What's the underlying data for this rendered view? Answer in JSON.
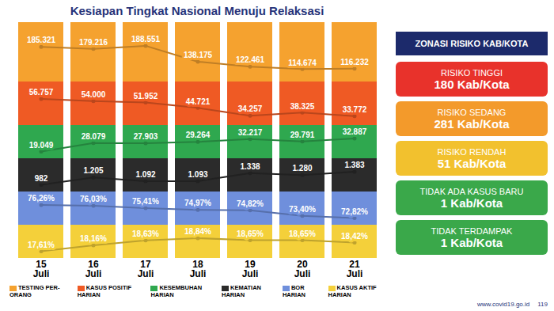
{
  "title": "Kesiapan Tingkat Nasional Menuju Relaksasi",
  "chart_data": {
    "type": "line",
    "categories": [
      "15 Juli",
      "16 Juli",
      "17 Juli",
      "18 Juli",
      "19 Juli",
      "20 Juli",
      "21 Juli"
    ],
    "data_labels": true,
    "tick_labels": "x",
    "series": [
      {
        "name": "TESTING PER-ORANG",
        "color": "#f5a22f",
        "values": [
          185321,
          179216,
          188551,
          138175,
          122461,
          114674,
          116232
        ],
        "value_labels": [
          "185.321",
          "179.216",
          "188.551",
          "138.175",
          "122.461",
          "114.674",
          "116.232"
        ]
      },
      {
        "name": "KASUS POSITIF HARIAN",
        "color": "#ef5a24",
        "values": [
          56757,
          54000,
          51952,
          44721,
          34257,
          38325,
          33772
        ],
        "value_labels": [
          "56.757",
          "54.000",
          "51.952",
          "44.721",
          "34.257",
          "38.325",
          "33.772"
        ]
      },
      {
        "name": "KESEMBUHAN HARIAN",
        "color": "#2fa84f",
        "values": [
          19049,
          28079,
          27903,
          29264,
          32217,
          29791,
          32887
        ],
        "value_labels": [
          "19.049",
          "28.079",
          "27.903",
          "29.264",
          "32.217",
          "29.791",
          "32.887"
        ]
      },
      {
        "name": "KEMATIAN HARIAN",
        "color": "#2b2b2b",
        "values": [
          982,
          1205,
          1092,
          1093,
          1338,
          1280,
          1383
        ],
        "value_labels": [
          "982",
          "1.205",
          "1.092",
          "1.093",
          "1.338",
          "1.280",
          "1.383"
        ]
      },
      {
        "name": "BOR HARIAN",
        "color": "#6f8fdc",
        "values": [
          76.26,
          76.03,
          75.41,
          74.97,
          74.82,
          73.4,
          72.82
        ],
        "value_labels": [
          "76,26%",
          "76,03%",
          "75,41%",
          "74,97%",
          "74,82%",
          "73,40%",
          "72,82%"
        ]
      },
      {
        "name": "KASUS AKTIF HARIAN",
        "color": "#f4d03a",
        "values": [
          17.61,
          18.16,
          18.63,
          18.84,
          18.65,
          18.65,
          18.42
        ],
        "value_labels": [
          "17,61%",
          "18,16%",
          "18,63%",
          "18,84%",
          "18,65%",
          "18,65%",
          "18,42%"
        ]
      }
    ]
  },
  "zonasi": {
    "title": "ZONASI RISIKO KAB/KOTA",
    "zones": [
      {
        "label": "RISIKO TINGGI",
        "count": "180 Kab/Kota",
        "color": "#e8322b"
      },
      {
        "label": "RISIKO SEDANG",
        "count": "281 Kab/Kota",
        "color": "#f39a2b"
      },
      {
        "label": "RISIKO RENDAH",
        "count": "51 Kab/Kota",
        "color": "#f2c12e"
      },
      {
        "label": "TIDAK ADA KASUS BARU",
        "count": "1 Kab/Kota",
        "color": "#3aa84a"
      },
      {
        "label": "TIDAK TERDAMPAK",
        "count": "1 Kab/Kota",
        "color": "#3aa84a"
      }
    ]
  },
  "footer": [
    "www.covid19.go.id",
    "119"
  ]
}
